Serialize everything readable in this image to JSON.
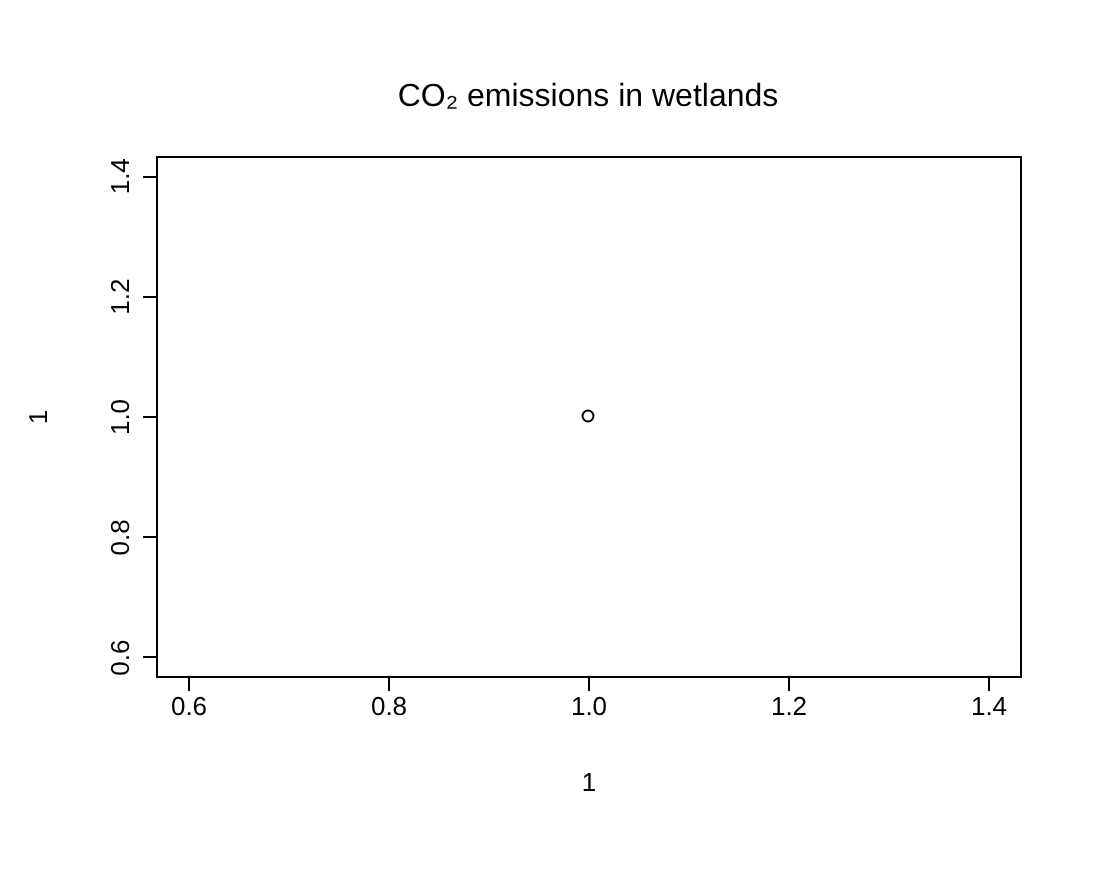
{
  "chart_data": {
    "type": "scatter",
    "title": "CO₂ emissions in wetlands",
    "xlabel": "1",
    "ylabel": "1",
    "x": [
      1
    ],
    "values": [
      1
    ],
    "color": "#000000",
    "marker": "circle",
    "grid": false,
    "xlim": [
      0.568,
      1.432
    ],
    "ylim": [
      0.568,
      1.432
    ],
    "xticks": [
      {
        "value": 0.6,
        "label": "0.6"
      },
      {
        "value": 0.8,
        "label": "0.8"
      },
      {
        "value": 1,
        "label": "1.0"
      },
      {
        "value": 1.2,
        "label": "1.2"
      },
      {
        "value": 1.4,
        "label": "1.4"
      }
    ],
    "yticks": [
      {
        "value": 0.6,
        "label": "0.6"
      },
      {
        "value": 0.8,
        "label": "0.8"
      },
      {
        "value": 1,
        "label": "1.0"
      },
      {
        "value": 1.2,
        "label": "1.2"
      },
      {
        "value": 1.4,
        "label": "1.4"
      }
    ]
  }
}
